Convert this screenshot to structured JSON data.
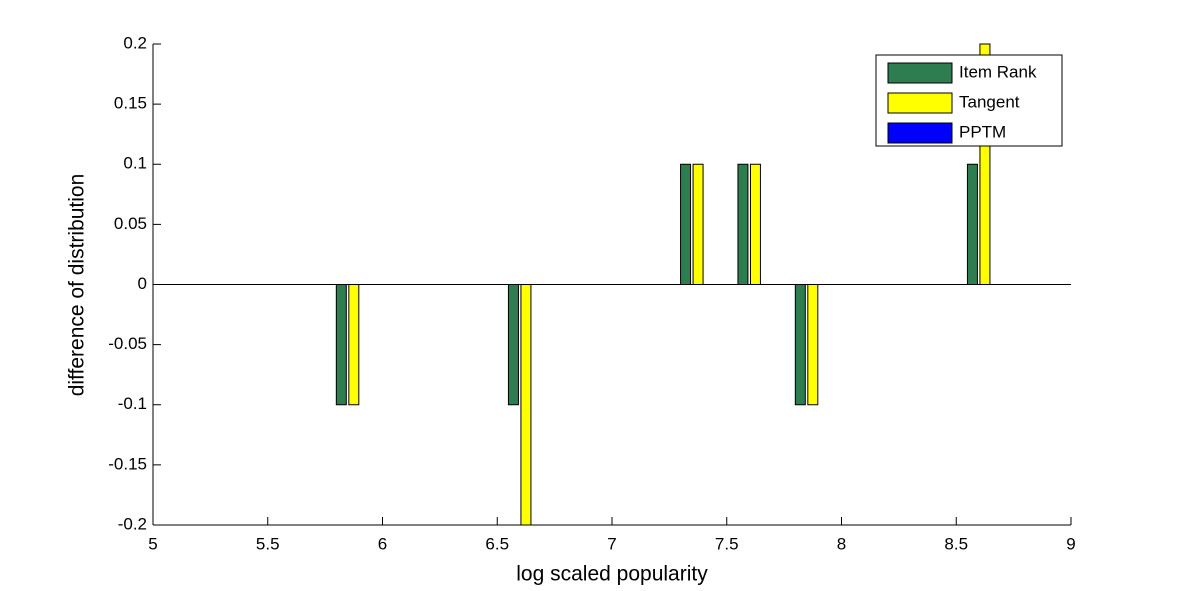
{
  "chart_data": {
    "type": "bar",
    "xlabel": "log scaled popularity",
    "ylabel": "difference of distribution",
    "x": [
      5.875,
      6.625,
      7.375,
      7.625,
      7.875,
      8.625
    ],
    "series": [
      {
        "name": "Item Rank",
        "color": "#2e7d50",
        "values": [
          -0.1,
          -0.1,
          0.1,
          0.1,
          -0.1,
          0.1
        ]
      },
      {
        "name": "Tangent",
        "color": "#ffff00",
        "values": [
          -0.1,
          -0.2,
          0.1,
          0.1,
          -0.1,
          0.2
        ]
      },
      {
        "name": "PPTM",
        "color": "#0000ff",
        "values": [
          0,
          0,
          0,
          0,
          0,
          0
        ]
      }
    ],
    "xlim": [
      5,
      9
    ],
    "xticks": [
      5,
      5.5,
      6,
      6.5,
      7,
      7.5,
      8,
      8.5,
      9
    ],
    "ylim": [
      -0.2,
      0.2
    ],
    "yticks": [
      -0.2,
      -0.15,
      -0.1,
      -0.05,
      0,
      0.05,
      0.1,
      0.15,
      0.2
    ],
    "legend": "northeast"
  }
}
